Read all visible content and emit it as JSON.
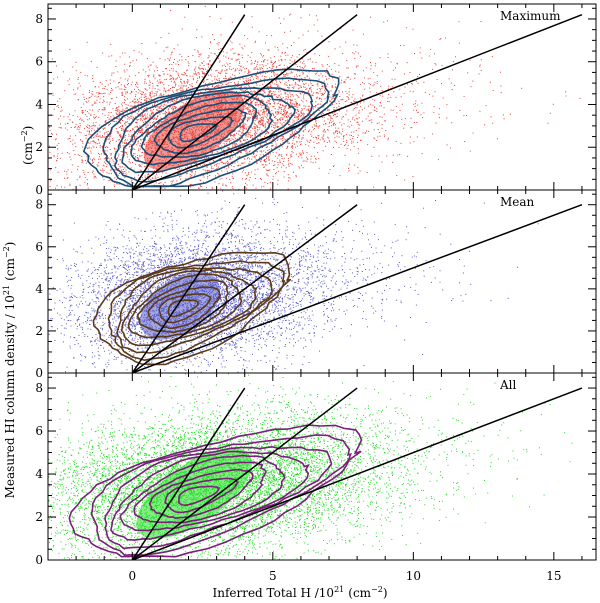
{
  "figure": {
    "xlabel": "Inferred Total H /10",
    "xlabel_exp": "21",
    "xlabel_unit": "(cm",
    "xlabel_unit_exp": "−2",
    "xlabel_close": ")",
    "ylabel": "Measured HI column density / 10",
    "ylabel_exp": "21",
    "ylabel_unit": "(cm",
    "ylabel_unit_exp": "−2",
    "ylabel_close": ")"
  },
  "chart_data": [
    {
      "type": "scatter",
      "panel": "top",
      "title": "Maximum",
      "point_color": "#e8423a",
      "contour_color": "#1b4f78",
      "xlim": [
        -3,
        16.5
      ],
      "ylim": [
        0,
        8.7
      ],
      "x_ticks": [
        0,
        5,
        10,
        15
      ],
      "y_ticks": [
        0,
        2,
        4,
        6,
        8
      ],
      "ylabel_partial": "(cm",
      "ylabel_partial_exp": "−2",
      "ylabel_partial_close": ")",
      "cloud": {
        "center": [
          2.5,
          3.2
        ],
        "spread": [
          2.6,
          1.5
        ],
        "tilt": 0.45
      },
      "reference_lines": [
        {
          "from": [
            0,
            0
          ],
          "to": [
            4,
            8.2
          ]
        },
        {
          "from": [
            0,
            0
          ],
          "to": [
            8,
            8.2
          ]
        },
        {
          "from": [
            0,
            0
          ],
          "to": [
            16,
            8.2
          ]
        }
      ]
    },
    {
      "type": "scatter",
      "panel": "middle",
      "title": "Mean",
      "point_color": "#5a5cc8",
      "contour_color": "#5a3a1a",
      "xlim": [
        -3,
        16.5
      ],
      "ylim": [
        0,
        8.7
      ],
      "x_ticks": [
        0,
        5,
        10,
        15
      ],
      "y_ticks": [
        0,
        2,
        4,
        6,
        8
      ],
      "cloud": {
        "center": [
          2.0,
          3.6
        ],
        "spread": [
          2.0,
          1.5
        ],
        "tilt": 0.4
      },
      "reference_lines": [
        {
          "from": [
            0,
            0
          ],
          "to": [
            4,
            8.0
          ]
        },
        {
          "from": [
            0,
            0
          ],
          "to": [
            8,
            8.0
          ]
        },
        {
          "from": [
            0,
            0
          ],
          "to": [
            16,
            8.0
          ]
        }
      ]
    },
    {
      "type": "scatter",
      "panel": "bottom",
      "title": "All",
      "point_color": "#22dd22",
      "contour_color": "#7a1f7a",
      "xlim": [
        -3,
        16.5
      ],
      "ylim": [
        0,
        8.7
      ],
      "x_ticks": [
        0,
        5,
        10,
        15
      ],
      "y_ticks": [
        0,
        2,
        4,
        6,
        8
      ],
      "cloud": {
        "center": [
          2.5,
          3.5
        ],
        "spread": [
          3.0,
          1.6
        ],
        "tilt": 0.4
      },
      "reference_lines": [
        {
          "from": [
            0,
            0
          ],
          "to": [
            4,
            8.0
          ]
        },
        {
          "from": [
            0,
            0
          ],
          "to": [
            8,
            8.0
          ]
        },
        {
          "from": [
            0,
            0
          ],
          "to": [
            16,
            8.0
          ]
        }
      ]
    }
  ]
}
